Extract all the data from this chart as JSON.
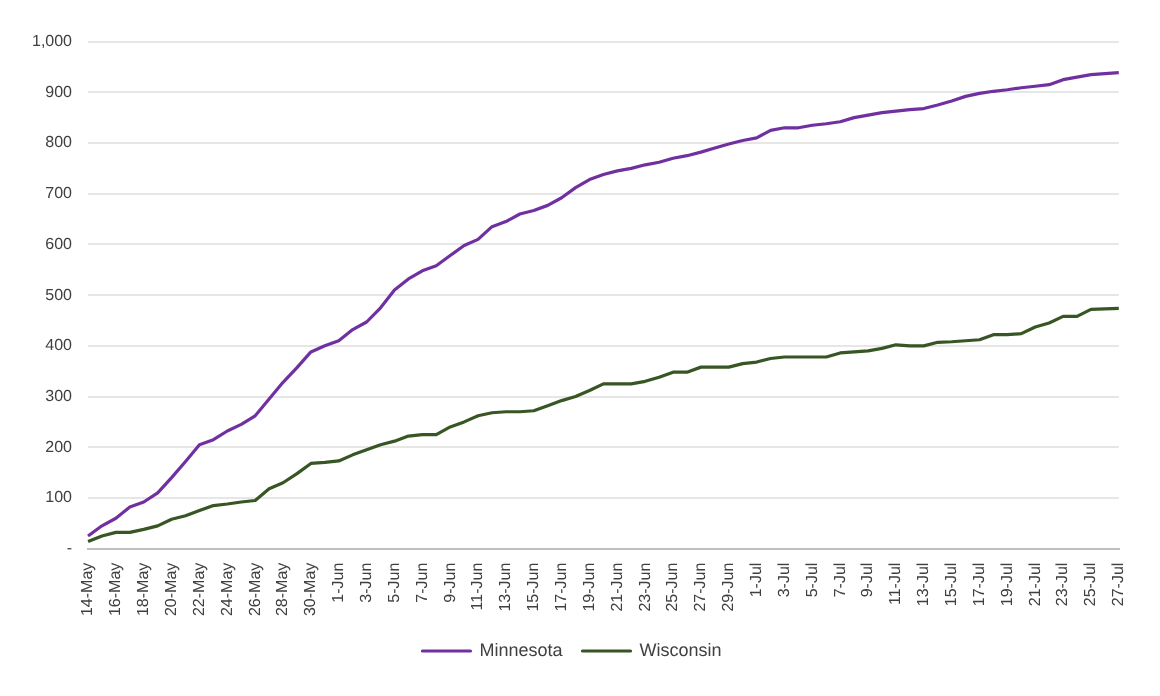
{
  "chart_data": {
    "type": "line",
    "categories": [
      "14-May",
      null,
      "16-May",
      null,
      "18-May",
      null,
      "20-May",
      null,
      "22-May",
      null,
      "24-May",
      null,
      "26-May",
      null,
      "28-May",
      null,
      "30-May",
      null,
      "1-Jun",
      null,
      "3-Jun",
      null,
      "5-Jun",
      null,
      "7-Jun",
      null,
      "9-Jun",
      null,
      "11-Jun",
      null,
      "13-Jun",
      null,
      "15-Jun",
      null,
      "17-Jun",
      null,
      "19-Jun",
      null,
      "21-Jun",
      null,
      "23-Jun",
      null,
      "25-Jun",
      null,
      "27-Jun",
      null,
      "29-Jun",
      null,
      "1-Jul",
      null,
      "3-Jul",
      null,
      "5-Jul",
      null,
      "7-Jul",
      null,
      "9-Jul",
      null,
      "11-Jul",
      null,
      "13-Jul",
      null,
      "15-Jul",
      null,
      "17-Jul",
      null,
      "19-Jul",
      null,
      "21-Jul",
      null,
      "23-Jul",
      null,
      "25-Jul",
      null,
      "27-Jul"
    ],
    "series": [
      {
        "name": "Minnesota",
        "color": "#7030a0",
        "values": [
          25,
          45,
          60,
          82,
          92,
          110,
          140,
          172,
          205,
          215,
          232,
          245,
          262,
          295,
          328,
          357,
          388,
          400,
          410,
          432,
          447,
          475,
          510,
          532,
          548,
          558,
          578,
          598,
          610,
          635,
          645,
          660,
          667,
          677,
          692,
          712,
          728,
          738,
          745,
          750,
          757,
          762,
          770,
          775,
          782,
          790,
          798,
          805,
          810,
          825,
          830,
          830,
          835,
          838,
          842,
          850,
          855,
          860,
          863,
          866,
          868,
          875,
          883,
          892,
          898,
          902,
          905,
          909,
          912,
          915,
          925,
          930,
          935,
          937,
          939
        ]
      },
      {
        "name": "Wisconsin",
        "color": "#375623",
        "values": [
          14,
          25,
          32,
          32,
          38,
          45,
          58,
          65,
          75,
          85,
          88,
          92,
          95,
          118,
          130,
          148,
          168,
          170,
          173,
          185,
          195,
          205,
          212,
          222,
          225,
          225,
          240,
          250,
          262,
          268,
          270,
          270,
          272,
          282,
          292,
          300,
          312,
          325,
          325,
          325,
          330,
          338,
          348,
          348,
          358,
          358,
          358,
          365,
          368,
          375,
          378,
          378,
          378,
          378,
          386,
          388,
          390,
          395,
          402,
          400,
          400,
          407,
          408,
          410,
          412,
          422,
          422,
          424,
          437,
          445,
          458,
          458,
          472,
          473,
          474
        ]
      }
    ],
    "ylim": [
      0,
      1000
    ],
    "yticks": [
      {
        "value": 0,
        "label": "-"
      },
      100,
      200,
      300,
      400,
      500,
      600,
      700,
      800,
      900,
      {
        "value": 1000,
        "label": "1,000"
      }
    ],
    "grid": "y",
    "legend": "bottom",
    "marker": "none",
    "line_style": "solid"
  }
}
